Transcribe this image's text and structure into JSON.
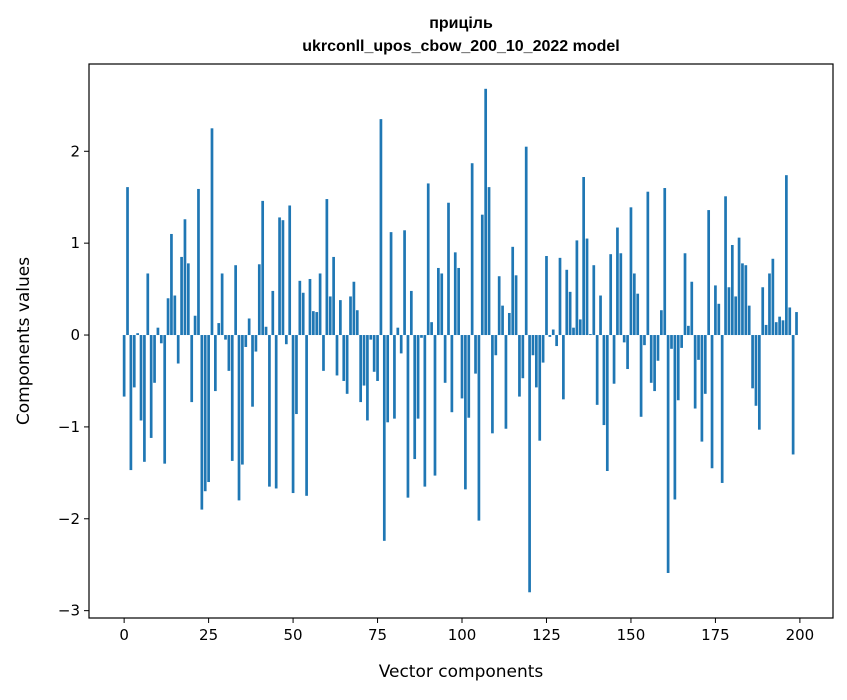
{
  "chart_data": {
    "type": "bar",
    "title": [
      "приціль",
      "ukrconll_upos_cbow_200_10_2022 model"
    ],
    "xlabel": "Vector components",
    "ylabel": "Components values",
    "xlim": [
      -10.4,
      209.8
    ],
    "ylim": [
      -3.08,
      2.95
    ],
    "xticks": [
      0,
      25,
      50,
      75,
      100,
      125,
      150,
      175,
      200
    ],
    "yticks": [
      -3,
      -2,
      -1,
      0,
      1,
      2
    ],
    "ytick_labels": [
      "−3",
      "−2",
      "−1",
      "0",
      "1",
      "2"
    ],
    "grid": false,
    "bar_color": "#1f77b4",
    "x_start": 0,
    "values": [
      -0.67,
      1.61,
      -1.47,
      -0.57,
      0.02,
      -0.93,
      -1.38,
      0.67,
      -1.12,
      -0.52,
      0.08,
      -0.09,
      -1.4,
      0.4,
      1.1,
      0.43,
      -0.31,
      0.85,
      1.26,
      0.78,
      -0.73,
      0.21,
      1.59,
      -1.9,
      -1.7,
      -1.6,
      2.25,
      -0.61,
      0.13,
      0.67,
      -0.05,
      -0.39,
      -1.37,
      0.76,
      -1.8,
      -1.41,
      -0.13,
      0.18,
      -0.78,
      -0.18,
      0.77,
      1.46,
      0.09,
      -1.65,
      0.48,
      -1.67,
      1.28,
      1.25,
      -0.1,
      1.41,
      -1.72,
      -0.86,
      0.59,
      0.46,
      -1.75,
      0.61,
      0.26,
      0.25,
      0.67,
      -0.39,
      1.48,
      0.42,
      0.85,
      -0.44,
      0.38,
      -0.5,
      -0.64,
      0.42,
      0.58,
      0.27,
      -0.73,
      -0.55,
      -0.93,
      -0.05,
      -0.4,
      -0.5,
      2.35,
      -2.24,
      -0.95,
      1.12,
      -0.91,
      0.08,
      -0.2,
      1.14,
      -1.77,
      0.48,
      -1.35,
      -0.91,
      -0.03,
      -1.65,
      1.65,
      0.14,
      -1.53,
      0.73,
      0.67,
      -0.52,
      1.44,
      -0.84,
      0.9,
      0.73,
      -0.69,
      -1.68,
      -0.9,
      1.87,
      -0.42,
      -2.02,
      1.31,
      2.68,
      1.61,
      -1.07,
      -0.22,
      0.64,
      0.32,
      -1.02,
      0.24,
      0.96,
      0.65,
      -0.67,
      -0.47,
      2.05,
      -2.8,
      -0.22,
      -0.57,
      -1.15,
      -0.3,
      0.86,
      -0.02,
      0.06,
      -0.12,
      0.84,
      -0.7,
      0.71,
      0.47,
      0.08,
      1.03,
      0.17,
      1.72,
      1.05,
      0.01,
      0.76,
      -0.76,
      0.43,
      -0.98,
      -1.48,
      0.88,
      -0.53,
      1.17,
      0.89,
      -0.08,
      -0.37,
      1.39,
      0.67,
      0.45,
      -0.89,
      -0.11,
      1.56,
      -0.52,
      -0.61,
      -0.28,
      0.27,
      1.6,
      -2.59,
      -0.15,
      -1.79,
      -0.71,
      -0.14,
      0.89,
      0.1,
      0.58,
      -0.8,
      -0.27,
      -1.16,
      -0.64,
      1.36,
      -1.45,
      0.54,
      0.34,
      -1.61,
      1.51,
      0.52,
      0.98,
      0.42,
      1.06,
      0.78,
      0.76,
      0.32,
      -0.58,
      -0.77,
      -1.03,
      0.52,
      0.11,
      0.67,
      0.83,
      0.14,
      0.2,
      0.16,
      1.74,
      0.3,
      -1.3,
      0.25
    ]
  }
}
